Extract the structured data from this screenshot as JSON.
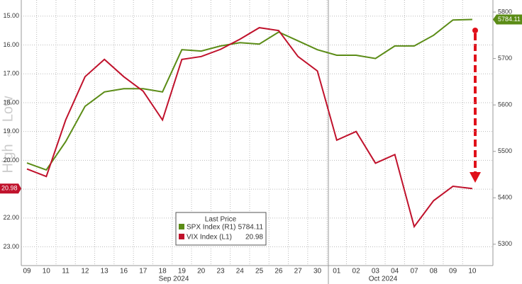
{
  "chart_data": {
    "type": "line",
    "left_axis_note": "High ⇔ Low",
    "categories": [
      "09",
      "10",
      "11",
      "12",
      "13",
      "16",
      "17",
      "18",
      "19",
      "20",
      "23",
      "24",
      "25",
      "26",
      "27",
      "30",
      "01",
      "02",
      "03",
      "04",
      "07",
      "08",
      "09",
      "10"
    ],
    "month_labels": [
      "Sep 2024",
      "Oct 2024"
    ],
    "legend_title": "Last Price",
    "series": [
      {
        "name": "SPX Index (R1)",
        "color": "#5b8c16",
        "axis": "y2",
        "values": [
          5475,
          5460,
          5521,
          5597,
          5628,
          5635,
          5635,
          5628,
          5719,
          5716,
          5727,
          5734,
          5731,
          5757,
          5738,
          5719,
          5707,
          5707,
          5700,
          5727,
          5727,
          5750,
          5783,
          5784.11
        ]
      },
      {
        "name": "VIX Index (L1)",
        "color": "#c0122c",
        "axis": "y",
        "values": [
          20.3,
          20.56,
          18.6,
          17.1,
          16.5,
          17.1,
          17.6,
          18.6,
          16.5,
          16.4,
          16.15,
          15.8,
          15.4,
          15.5,
          16.4,
          16.9,
          19.3,
          19.0,
          20.1,
          19.8,
          22.3,
          21.4,
          20.9,
          20.98
        ]
      }
    ],
    "y_inverted": true,
    "ylim": [
      23.65,
      14.44
    ],
    "yticks": [
      {
        "value": 15,
        "label": "15.00"
      },
      {
        "value": 16,
        "label": "16.00"
      },
      {
        "value": 17,
        "label": "17.00"
      },
      {
        "value": 18,
        "label": "18.00"
      },
      {
        "value": 19,
        "label": "19.00"
      },
      {
        "value": 20,
        "label": "20.00"
      },
      {
        "value": 21,
        "label": "21.00"
      },
      {
        "value": 22,
        "label": "22.00"
      },
      {
        "value": 23,
        "label": "23.00"
      }
    ],
    "y2lim": [
      5254,
      5826
    ],
    "y2ticks": [
      5300,
      5400,
      5500,
      5600,
      5700,
      5800
    ],
    "grid": true
  }
}
